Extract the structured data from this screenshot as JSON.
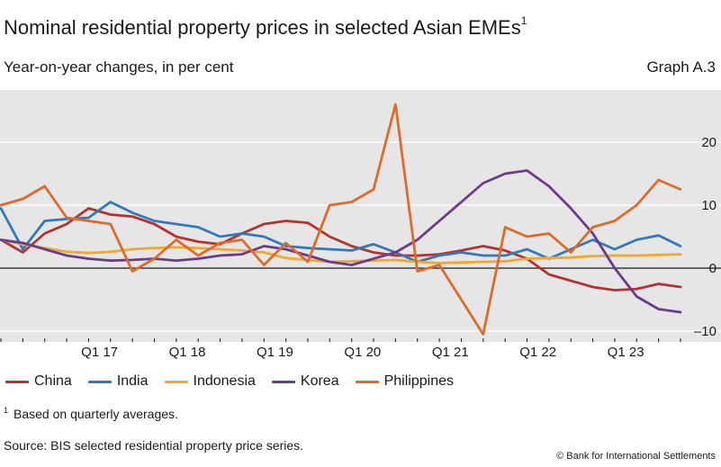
{
  "header": {
    "title": "Nominal residential property prices in selected Asian EMEs",
    "title_footnote_marker": "1",
    "subtitle": "Year-on-year changes, in per cent",
    "graph_id": "Graph A.3"
  },
  "footnote": {
    "marker": "1",
    "text": "Based on quarterly averages."
  },
  "source": "Source: BIS selected residential property price series.",
  "copyright": "© Bank for International Settlements",
  "colors": {
    "plot_background": "#e6e6e6",
    "grid": "#ffffff",
    "zero_line": "#1a1a1a"
  },
  "chart_data": {
    "type": "line",
    "x": [
      "Q1 2016",
      "Q2 2016",
      "Q3 2016",
      "Q4 2016",
      "Q1 2017",
      "Q2 2017",
      "Q3 2017",
      "Q4 2017",
      "Q1 2018",
      "Q2 2018",
      "Q3 2018",
      "Q4 2018",
      "Q1 2019",
      "Q2 2019",
      "Q3 2019",
      "Q4 2019",
      "Q1 2020",
      "Q2 2020",
      "Q3 2020",
      "Q4 2020",
      "Q1 2021",
      "Q2 2021",
      "Q3 2021",
      "Q4 2021",
      "Q1 2022",
      "Q2 2022",
      "Q3 2022",
      "Q4 2022",
      "Q1 2023",
      "Q2 2023",
      "Q3 2023",
      "Q4 2023"
    ],
    "x_tick_labels": [
      {
        "index": 4,
        "label": "Q1 17"
      },
      {
        "index": 8,
        "label": "Q1 18"
      },
      {
        "index": 12,
        "label": "Q1 19"
      },
      {
        "index": 16,
        "label": "Q1 20"
      },
      {
        "index": 20,
        "label": "Q1 21"
      },
      {
        "index": 24,
        "label": "Q1 22"
      },
      {
        "index": 28,
        "label": "Q1 23"
      }
    ],
    "y_ticks": [
      -10,
      0,
      10,
      20
    ],
    "ylim": [
      -10,
      26
    ],
    "y_axis_side": "right",
    "grid": true,
    "legend_position": "bottom",
    "series": [
      {
        "name": "China",
        "color": "#b5322e",
        "values": [
          4.5,
          2.5,
          5.5,
          7.0,
          9.5,
          8.5,
          8.2,
          7.0,
          5.0,
          4.2,
          3.8,
          5.5,
          7.0,
          7.5,
          7.2,
          5.0,
          3.5,
          2.5,
          2.0,
          2.0,
          2.2,
          2.8,
          3.5,
          2.8,
          1.5,
          -1.0,
          -2.0,
          -3.0,
          -3.5,
          -3.3,
          -2.5,
          -3.0
        ]
      },
      {
        "name": "India",
        "color": "#2f7abf",
        "values": [
          9.5,
          3.0,
          7.5,
          7.8,
          8.0,
          10.5,
          8.8,
          7.5,
          7.0,
          6.5,
          5.0,
          5.5,
          5.0,
          3.5,
          3.2,
          3.0,
          2.8,
          3.8,
          2.5,
          1.0,
          2.0,
          2.5,
          2.0,
          2.0,
          3.0,
          1.5,
          3.0,
          4.5,
          3.0,
          4.5,
          5.2,
          3.5
        ]
      },
      {
        "name": "Indonesia",
        "color": "#f0a830",
        "values": [
          4.5,
          3.8,
          3.2,
          2.6,
          2.4,
          2.6,
          3.0,
          3.2,
          3.3,
          3.2,
          3.0,
          2.8,
          2.5,
          1.6,
          1.3,
          1.0,
          1.1,
          1.2,
          1.3,
          1.0,
          0.8,
          0.9,
          1.0,
          1.1,
          1.5,
          1.6,
          1.7,
          1.9,
          2.0,
          2.0,
          2.1,
          2.2
        ]
      },
      {
        "name": "Korea",
        "color": "#6b3b8c",
        "values": [
          4.5,
          4.0,
          3.0,
          2.0,
          1.5,
          1.2,
          1.3,
          1.5,
          1.2,
          1.5,
          2.0,
          2.2,
          3.5,
          3.0,
          2.0,
          1.0,
          0.5,
          1.5,
          2.5,
          4.5,
          7.5,
          10.5,
          13.5,
          15.0,
          15.5,
          13.0,
          9.5,
          5.5,
          0.0,
          -4.5,
          -6.5,
          -7.0
        ]
      },
      {
        "name": "Philippines",
        "color": "#e06a28",
        "values": [
          10.0,
          11.0,
          13.0,
          8.0,
          7.5,
          7.0,
          -0.5,
          1.5,
          4.5,
          2.0,
          4.0,
          4.5,
          0.5,
          4.0,
          1.0,
          10.0,
          10.5,
          12.5,
          26.0,
          -0.5,
          0.5,
          -5.0,
          -10.5,
          6.5,
          5.0,
          5.5,
          2.5,
          6.5,
          7.5,
          10.0,
          14.0,
          12.5
        ]
      }
    ]
  }
}
